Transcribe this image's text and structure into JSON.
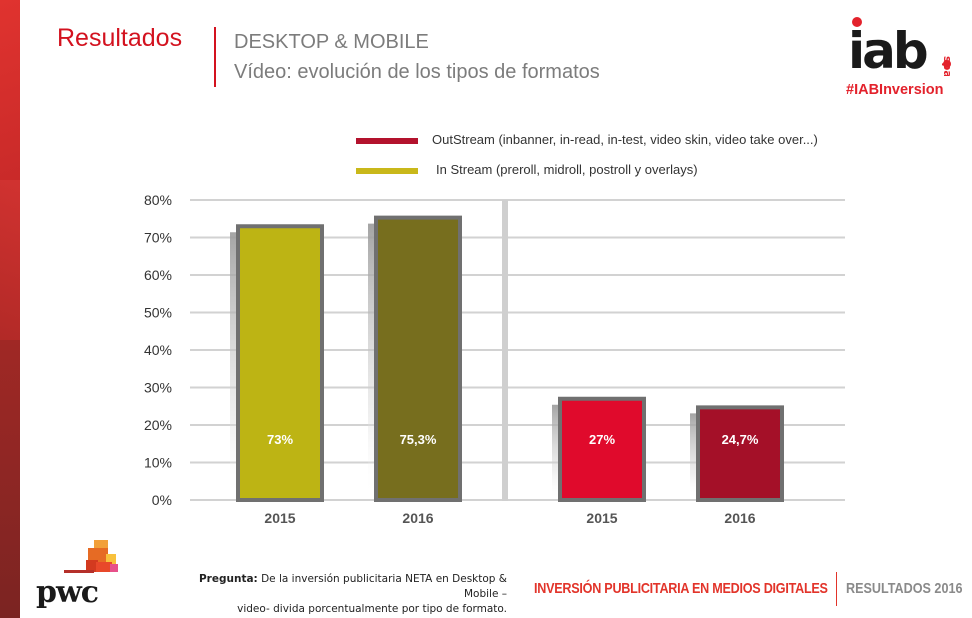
{
  "header": {
    "section": "Resultados",
    "subtitle_1": "DESKTOP & MOBILE",
    "subtitle_2": "Vídeo: evolución de los tipos de formatos"
  },
  "brand": {
    "iab_logo_text": "iab",
    "iab_logo_sub": "spain",
    "hashtag": "#IABInversion",
    "pwc_logo_text": "pwc"
  },
  "footer": {
    "question_label": "Pregunta:",
    "question_text_1": "De la inversión publicitaria NETA en Desktop & Mobile –",
    "question_text_2": "video- divida porcentualmente por tipo de formato.",
    "report_title": "INVERSIÓN PUBLICITARIA EN MEDIOS DIGITALES",
    "report_edition": "RESULTADOS 2016"
  },
  "colors": {
    "brand_red": "#d3121f",
    "instream_2015": "#bdb414",
    "instream_2016": "#776e1e",
    "outstream_2015": "#e00a2c",
    "outstream_2016": "#a41028",
    "legend_outstream": "#b3122d",
    "legend_instream": "#c9b81a"
  },
  "chart_data": {
    "type": "bar",
    "title": "Vídeo: evolución de los tipos de formatos",
    "xlabel": "",
    "ylabel": "",
    "ylim": [
      0,
      80
    ],
    "yticks": [
      "0%",
      "10%",
      "20%",
      "30%",
      "40%",
      "50%",
      "60%",
      "70%",
      "80%"
    ],
    "ytick_values": [
      0,
      10,
      20,
      30,
      40,
      50,
      60,
      70,
      80
    ],
    "grid": true,
    "legend_position": "top",
    "legend": [
      {
        "name": "OutStream (inbanner, in-read, in-test, video skin, video take over...)",
        "color": "#b3122d"
      },
      {
        "name": "In Stream (preroll, midroll, postroll y overlays)",
        "color": "#c9b81a"
      }
    ],
    "groups": [
      {
        "name": "In Stream (preroll, midroll, postroll y overlays)",
        "bars": [
          {
            "category": "2015",
            "value": 73,
            "label": "73%",
            "color": "#bdb414"
          },
          {
            "category": "2016",
            "value": 75.3,
            "label": "75,3%",
            "color": "#776e1e"
          }
        ]
      },
      {
        "name": "OutStream (inbanner, in-read, in-test, video skin, video take over...)",
        "bars": [
          {
            "category": "2015",
            "value": 27,
            "label": "27%",
            "color": "#e00a2c"
          },
          {
            "category": "2016",
            "value": 24.7,
            "label": "24,7%",
            "color": "#a41028"
          }
        ]
      }
    ]
  }
}
